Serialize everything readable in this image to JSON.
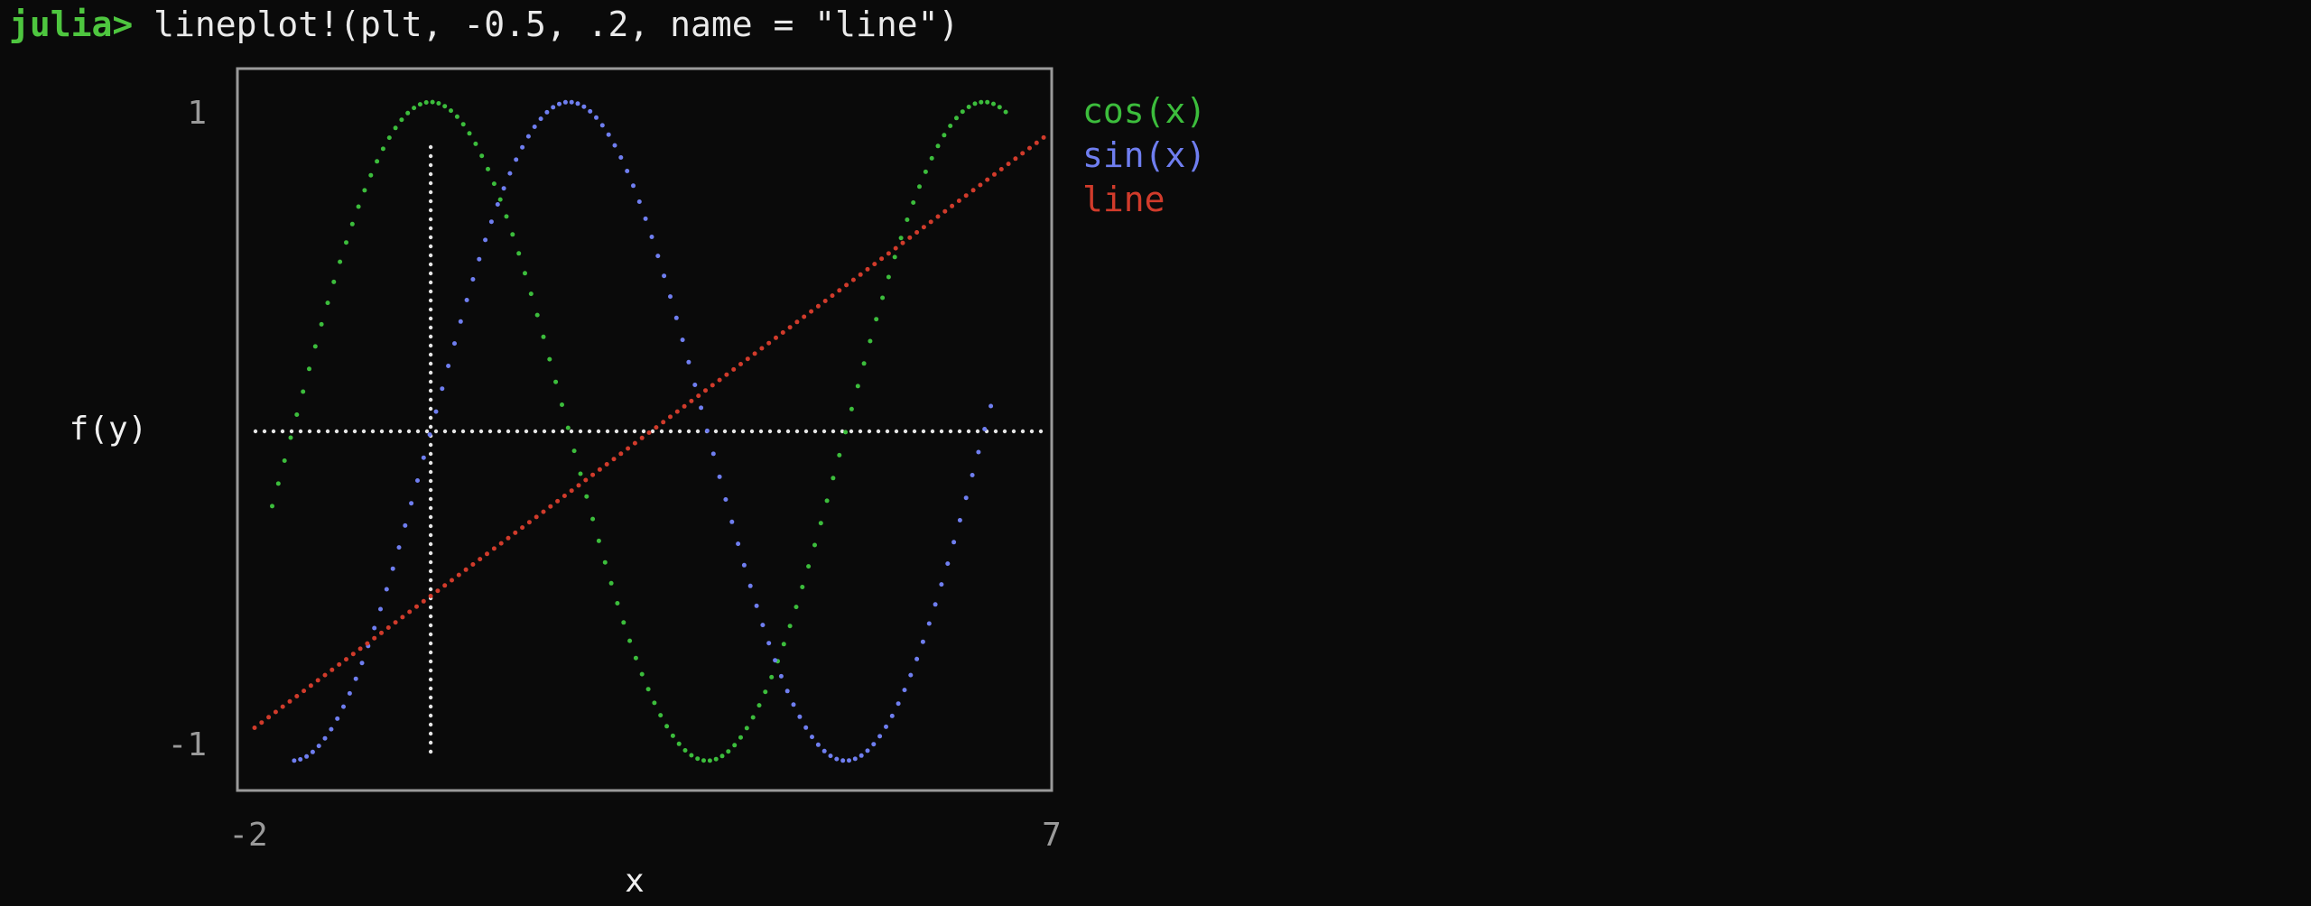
{
  "terminal": {
    "prompt": "julia>",
    "command": " lineplot!(plt, -0.5, .2, name = \"line\")"
  },
  "chart_data": {
    "type": "line",
    "title": "",
    "xlabel": "x",
    "ylabel": "f(y)",
    "xlim": [
      -2,
      7
    ],
    "ylim": [
      -1,
      1
    ],
    "x_tick_labels": [
      "-2",
      "7"
    ],
    "y_tick_labels": [
      "1",
      "-1"
    ],
    "legend_position": "right",
    "series": [
      {
        "name": "cos(x)",
        "color": "#3cbd3c",
        "function": "cos",
        "x_range": [
          -1.8,
          6.5
        ],
        "step": 0.14
      },
      {
        "name": "sin(x)",
        "color": "#6f7ef0",
        "function": "sin",
        "x_range": [
          -1.55,
          6.4
        ],
        "step": 0.14
      },
      {
        "name": "line",
        "color": "#d13b2b",
        "function": "linear",
        "intercept": -0.5,
        "slope": 0.2,
        "x_range": [
          -2,
          7
        ],
        "step": 0.16
      }
    ],
    "reference_lines": [
      {
        "orientation": "horizontal",
        "value": 0,
        "color": "#e6e6e6"
      },
      {
        "orientation": "vertical",
        "value": 0,
        "color": "#e6e6e6"
      }
    ]
  }
}
